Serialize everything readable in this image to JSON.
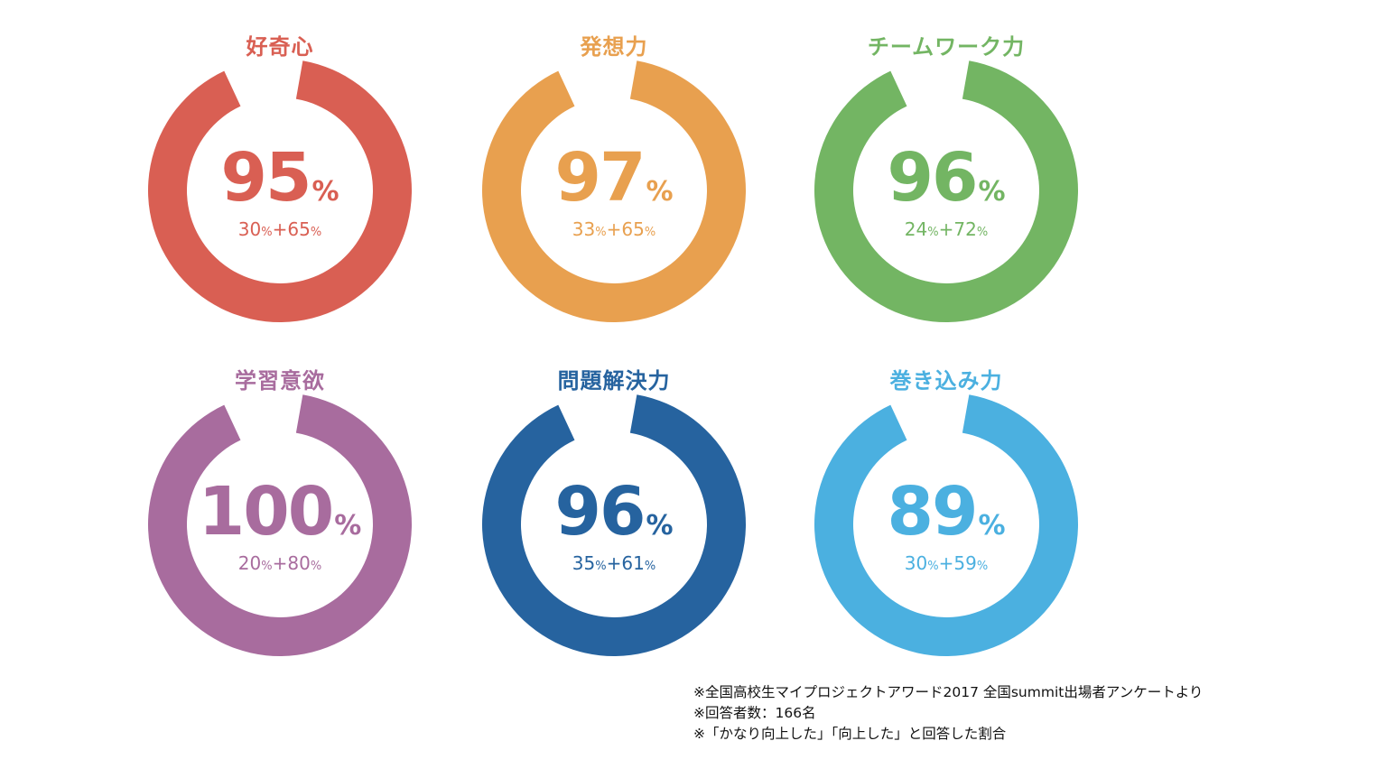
{
  "chart_data": [
    {
      "type": "pie",
      "title": "好奇心",
      "value": 95,
      "unit": "%",
      "breakdown": [
        30,
        65
      ],
      "color": "#d95f53"
    },
    {
      "type": "pie",
      "title": "発想力",
      "value": 97,
      "unit": "%",
      "breakdown": [
        33,
        65
      ],
      "color": "#e8a04f"
    },
    {
      "type": "pie",
      "title": "チームワーク力",
      "value": 96,
      "unit": "%",
      "breakdown": [
        24,
        72
      ],
      "color": "#73b563"
    },
    {
      "type": "pie",
      "title": "学習意欲",
      "value": 100,
      "unit": "%",
      "breakdown": [
        20,
        80
      ],
      "color": "#a86c9e"
    },
    {
      "type": "pie",
      "title": "問題解決力",
      "value": 96,
      "unit": "%",
      "breakdown": [
        35,
        61
      ],
      "color": "#26639f"
    },
    {
      "type": "pie",
      "title": "巻き込み力",
      "value": 89,
      "unit": "%",
      "breakdown": [
        30,
        59
      ],
      "color": "#4bb0e0"
    }
  ],
  "notes": [
    "※全国高校生マイプロジェクトアワード2017 全国summit出場者アンケートより",
    "※回答者数：166名",
    "※「かなり向上した」「向上した」と回答した割合"
  ]
}
